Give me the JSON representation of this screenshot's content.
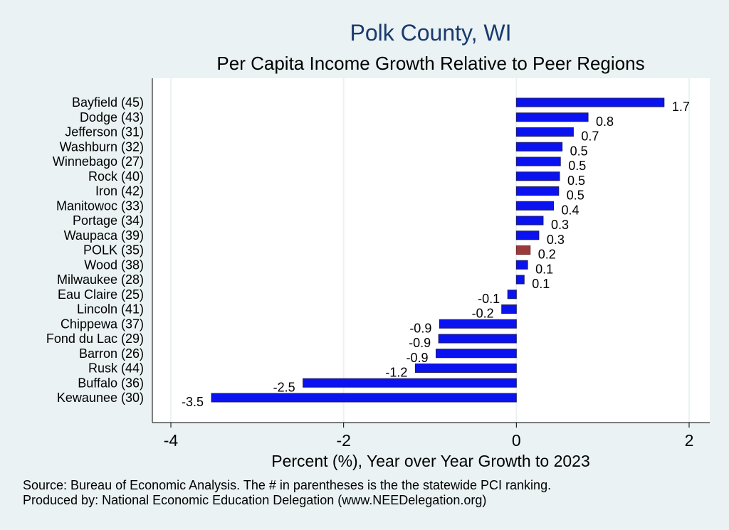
{
  "chart_data": {
    "type": "bar",
    "orientation": "horizontal",
    "title": "Polk County, WI",
    "subtitle": "Per Capita Income Growth Relative to Peer Regions",
    "xlabel": "Percent (%), Year over Year Growth to 2023",
    "ylabel": "",
    "xlim": [
      -4,
      2
    ],
    "xticks": [
      "-4",
      "-2",
      "0",
      "2"
    ],
    "grid": true,
    "categories": [
      "Bayfield (45)",
      "Dodge (43)",
      "Jefferson (31)",
      "Washburn (32)",
      "Winnebago (27)",
      "Rock (40)",
      "Iron (42)",
      "Manitowoc (33)",
      "Portage (34)",
      "Waupaca (39)",
      "POLK (35)",
      "Wood (38)",
      "Milwaukee (28)",
      "Eau Claire (25)",
      "Lincoln (41)",
      "Chippewa (37)",
      "Fond du Lac (29)",
      "Barron (26)",
      "Rusk (44)",
      "Buffalo (36)",
      "Kewaunee (30)"
    ],
    "values": [
      1.71,
      0.83,
      0.66,
      0.53,
      0.51,
      0.5,
      0.49,
      0.43,
      0.31,
      0.26,
      0.16,
      0.13,
      0.09,
      -0.1,
      -0.17,
      -0.89,
      -0.9,
      -0.93,
      -1.17,
      -2.47,
      -3.53
    ],
    "labels": [
      "1.7",
      "0.8",
      "0.7",
      "0.5",
      "0.5",
      "0.5",
      "0.5",
      "0.4",
      "0.3",
      "0.3",
      "0.2",
      "0.1",
      "0.1",
      "-0.1",
      "-0.2",
      "-0.9",
      "-0.9",
      "-0.9",
      "-1.2",
      "-2.5",
      "-3.5"
    ],
    "highlight_index": 10,
    "colors": {
      "bar": "#0a12f0",
      "highlight": "#9b3a3a",
      "background": "#eaf2f3",
      "plot_background": "#ffffff",
      "grid": "#eaf2f3",
      "title": "#1a3a6e"
    }
  },
  "notes": {
    "source": "Source: Bureau of Economic Analysis. The # in parentheses is the the statewide PCI ranking.",
    "produced_by": "Produced by: National Economic Education Delegation (www.NEEDelegation.org)"
  }
}
